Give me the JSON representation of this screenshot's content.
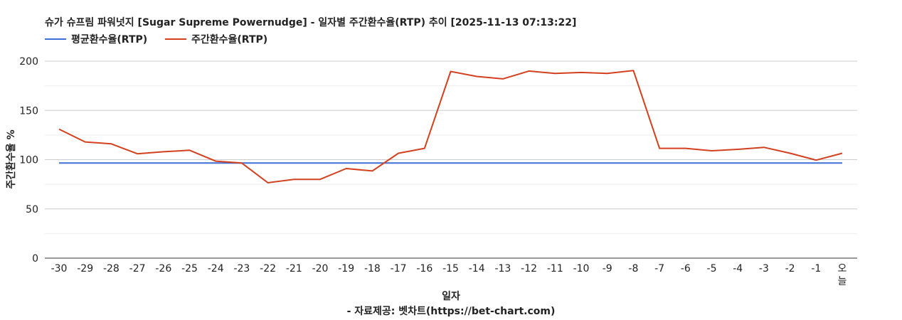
{
  "chart_data": {
    "type": "line",
    "title": "슈가 슈프림 파워넛지 [Sugar Supreme Powernudge] - 일자별 주간환수율(RTP) 추이 [2025-11-13 07:13:22]",
    "xlabel": "일자",
    "ylabel": "주간환수율 %",
    "source": "- 자료제공: 벳차트(https://bet-chart.com)",
    "ylim": [
      0,
      200
    ],
    "yticks": [
      0,
      50,
      100,
      150,
      200
    ],
    "grid": true,
    "legend_position": "top-left",
    "categories": [
      "-30",
      "-29",
      "-28",
      "-27",
      "-26",
      "-25",
      "-24",
      "-23",
      "-22",
      "-21",
      "-20",
      "-19",
      "-18",
      "-17",
      "-16",
      "-15",
      "-14",
      "-13",
      "-12",
      "-11",
      "-10",
      "-9",
      "-8",
      "-7",
      "-6",
      "-5",
      "-4",
      "-3",
      "-2",
      "-1",
      "오늘"
    ],
    "series": [
      {
        "name": "평균환수율(RTP)",
        "color": "#3d6fd6",
        "values": [
          96.5,
          96.5,
          96.5,
          96.5,
          96.5,
          96.5,
          96.5,
          96.5,
          96.5,
          96.5,
          96.5,
          96.5,
          96.5,
          96.5,
          96.5,
          96.5,
          96.5,
          96.5,
          96.5,
          96.5,
          96.5,
          96.5,
          96.5,
          96.5,
          96.5,
          96.5,
          96.5,
          96.5,
          96.5,
          96.5,
          96.5
        ]
      },
      {
        "name": "주간환수율(RTP)",
        "color": "#d2401e",
        "values": [
          131,
          118,
          116,
          106,
          108,
          109.5,
          98.5,
          96.5,
          76.5,
          80,
          80,
          91,
          88.5,
          106.5,
          111.5,
          189.5,
          184.5,
          182,
          190,
          187.5,
          188.5,
          187.5,
          190.5,
          111.5,
          111.5,
          109,
          110.5,
          112.5,
          106.5,
          99.5,
          106.5
        ]
      }
    ]
  }
}
